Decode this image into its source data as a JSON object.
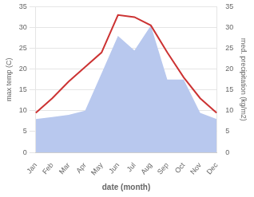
{
  "chart_data": {
    "type": "line",
    "xlabel": "date (month)",
    "ylabel": "max temp (C)",
    "y2label": "med. precipitation (kg/m2)",
    "categories": [
      "Jan",
      "Feb",
      "Mar",
      "Apr",
      "May",
      "Jun",
      "Jul",
      "Aug",
      "Sep",
      "Oct",
      "Nov",
      "Dec"
    ],
    "series": [
      {
        "type": "area",
        "axis": "y2",
        "color": "#b8c8ee",
        "values": [
          8.0,
          8.5,
          9.0,
          10.0,
          19.0,
          28.0,
          24.5,
          30.5,
          17.5,
          17.5,
          9.5,
          8.0
        ]
      },
      {
        "type": "line",
        "color": "#cc3333",
        "values": [
          9.5,
          13.0,
          17.0,
          20.5,
          24.0,
          33.0,
          32.5,
          30.5,
          24.0,
          18.0,
          13.0,
          9.5
        ]
      }
    ],
    "ylim": [
      0,
      35
    ],
    "yticks": [
      0,
      5,
      10,
      15,
      20,
      25,
      30,
      35
    ],
    "y2lim": [
      0,
      35
    ],
    "y2ticks": [
      0,
      5,
      10,
      15,
      20,
      25,
      30,
      35
    ],
    "grid": true
  }
}
